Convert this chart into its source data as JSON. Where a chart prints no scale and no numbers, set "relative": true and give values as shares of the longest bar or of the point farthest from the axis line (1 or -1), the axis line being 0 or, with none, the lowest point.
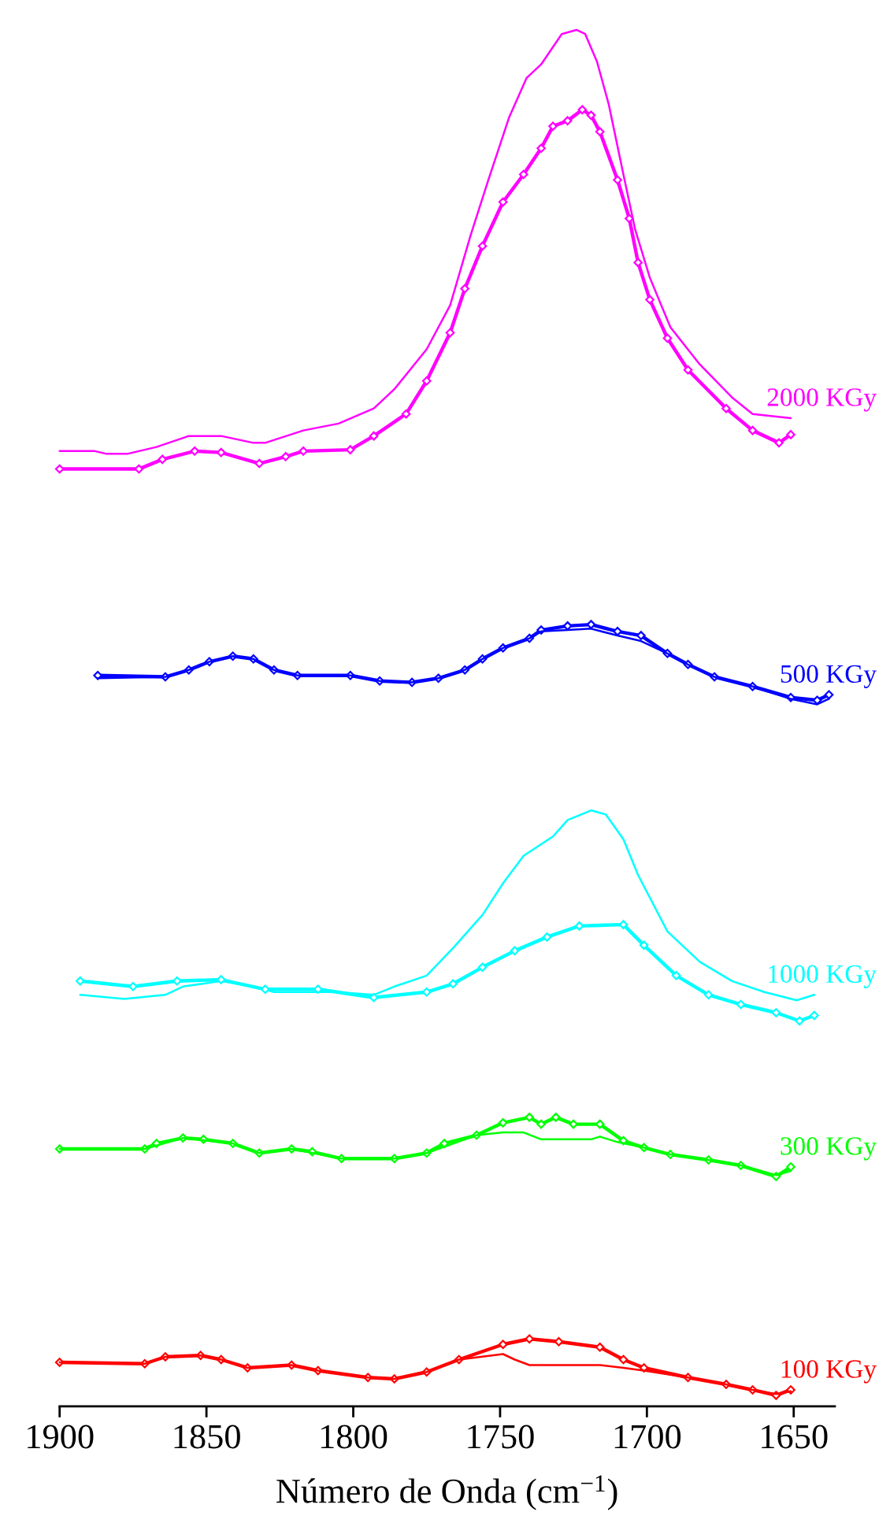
{
  "chart_data": {
    "type": "line",
    "relative": true,
    "xlabel": "Número de Onda (cm$^{−1}$)",
    "xlim": [
      1900,
      1636
    ],
    "xticks": [
      1900,
      1850,
      1800,
      1750,
      1700,
      1650
    ],
    "tick_labels": "x",
    "line_style": "solid",
    "series": [
      {
        "name": "2000 KGy",
        "color": "#ff00ff",
        "x": [
          1900,
          1888,
          1884,
          1877,
          1867,
          1856,
          1845,
          1834,
          1830,
          1817,
          1805,
          1793,
          1786,
          1775,
          1767,
          1760,
          1754,
          1747,
          1741,
          1736,
          1729,
          1724,
          1721,
          1717,
          1713,
          1708,
          1704,
          1699,
          1692,
          1682,
          1671,
          1664,
          1651
        ],
        "values": [
          0.694,
          0.694,
          0.692,
          0.692,
          0.697,
          0.705,
          0.705,
          0.7,
          0.7,
          0.709,
          0.714,
          0.725,
          0.739,
          0.768,
          0.8,
          0.851,
          0.891,
          0.936,
          0.965,
          0.975,
          0.997,
          1,
          0.997,
          0.977,
          0.946,
          0.895,
          0.855,
          0.82,
          0.784,
          0.757,
          0.733,
          0.721,
          0.718
        ]
      },
      {
        "color": "#ff00ff",
        "marker": "diamond",
        "x": [
          1900,
          1873,
          1865,
          1854,
          1845,
          1832,
          1823,
          1817,
          1801,
          1793,
          1782,
          1775,
          1767,
          1762,
          1756,
          1749,
          1742,
          1736,
          1732,
          1727,
          1722,
          1719,
          1716,
          1710,
          1706,
          1703,
          1699,
          1693,
          1686,
          1673,
          1664,
          1655,
          1651
        ],
        "values": [
          0.681,
          0.681,
          0.688,
          0.694,
          0.693,
          0.685,
          0.69,
          0.694,
          0.695,
          0.705,
          0.721,
          0.745,
          0.78,
          0.812,
          0.843,
          0.875,
          0.895,
          0.914,
          0.93,
          0.934,
          0.942,
          0.938,
          0.926,
          0.891,
          0.863,
          0.831,
          0.804,
          0.776,
          0.753,
          0.725,
          0.709,
          0.7,
          0.706
        ]
      },
      {
        "name": "500 KGy",
        "color": "#0000ff",
        "marker": "diamond",
        "x": [
          1887,
          1864,
          1856,
          1849,
          1841,
          1834,
          1827,
          1819,
          1801,
          1791,
          1780,
          1771,
          1762,
          1756,
          1749,
          1740,
          1736,
          1727,
          1719,
          1710,
          1702,
          1693,
          1686,
          1677,
          1664,
          1651,
          1642,
          1638
        ],
        "values": [
          0.531,
          0.53,
          0.535,
          0.541,
          0.545,
          0.543,
          0.535,
          0.531,
          0.531,
          0.527,
          0.526,
          0.529,
          0.535,
          0.543,
          0.551,
          0.558,
          0.564,
          0.567,
          0.568,
          0.563,
          0.56,
          0.547,
          0.539,
          0.53,
          0.523,
          0.515,
          0.513,
          0.517
        ]
      },
      {
        "color": "#0000ff",
        "x": [
          1887,
          1864,
          1856,
          1849,
          1841,
          1834,
          1827,
          1819,
          1801,
          1791,
          1780,
          1771,
          1762,
          1756,
          1749,
          1740,
          1736,
          1727,
          1719,
          1710,
          1702,
          1693,
          1686,
          1677,
          1664,
          1651,
          1642,
          1638
        ],
        "values": [
          0.529,
          0.53,
          0.535,
          0.541,
          0.545,
          0.543,
          0.535,
          0.531,
          0.531,
          0.527,
          0.526,
          0.529,
          0.535,
          0.543,
          0.551,
          0.558,
          0.563,
          0.564,
          0.565,
          0.56,
          0.556,
          0.547,
          0.539,
          0.53,
          0.523,
          0.514,
          0.51,
          0.514
        ]
      },
      {
        "name": "1000 KGy",
        "color": "#00ffff",
        "x": [
          1893,
          1878,
          1864,
          1858,
          1845,
          1834,
          1827,
          1806,
          1793,
          1786,
          1775,
          1766,
          1756,
          1749,
          1742,
          1732,
          1727,
          1719,
          1714,
          1708,
          1703,
          1693,
          1682,
          1671,
          1660,
          1649,
          1643
        ],
        "values": [
          0.299,
          0.296,
          0.299,
          0.305,
          0.309,
          0.305,
          0.301,
          0.301,
          0.299,
          0.305,
          0.313,
          0.333,
          0.357,
          0.38,
          0.4,
          0.414,
          0.426,
          0.433,
          0.43,
          0.412,
          0.386,
          0.345,
          0.323,
          0.309,
          0.301,
          0.295,
          0.299
        ]
      },
      {
        "color": "#00ffff",
        "marker": "diamond",
        "x": [
          1893,
          1875,
          1860,
          1845,
          1830,
          1812,
          1793,
          1775,
          1766,
          1756,
          1745,
          1734,
          1723,
          1708,
          1701,
          1690,
          1679,
          1668,
          1656,
          1648,
          1643
        ],
        "values": [
          0.309,
          0.305,
          0.309,
          0.31,
          0.303,
          0.303,
          0.297,
          0.301,
          0.307,
          0.319,
          0.331,
          0.341,
          0.349,
          0.35,
          0.335,
          0.313,
          0.299,
          0.292,
          0.286,
          0.28,
          0.284
        ]
      },
      {
        "name": "300 KGy",
        "color": "#00ff00",
        "marker": "diamond",
        "x": [
          1900,
          1871,
          1867,
          1858,
          1851,
          1841,
          1832,
          1821,
          1814,
          1804,
          1786,
          1775,
          1769,
          1758,
          1749,
          1740,
          1736,
          1731,
          1725,
          1716,
          1708,
          1701,
          1692,
          1679,
          1668,
          1656,
          1651
        ],
        "values": [
          0.187,
          0.187,
          0.191,
          0.195,
          0.194,
          0.191,
          0.184,
          0.187,
          0.185,
          0.18,
          0.18,
          0.184,
          0.191,
          0.197,
          0.206,
          0.21,
          0.205,
          0.21,
          0.205,
          0.205,
          0.193,
          0.188,
          0.183,
          0.179,
          0.175,
          0.167,
          0.174
        ]
      },
      {
        "color": "#00ff00",
        "x": [
          1900,
          1871,
          1858,
          1841,
          1832,
          1821,
          1804,
          1786,
          1775,
          1758,
          1749,
          1742,
          1736,
          1719,
          1716,
          1710,
          1701,
          1692,
          1679,
          1668,
          1656,
          1651
        ],
        "values": [
          0.187,
          0.187,
          0.195,
          0.191,
          0.184,
          0.187,
          0.18,
          0.18,
          0.184,
          0.197,
          0.199,
          0.199,
          0.194,
          0.194,
          0.196,
          0.192,
          0.188,
          0.183,
          0.179,
          0.175,
          0.168,
          0.171
        ]
      },
      {
        "name": "100 KGy",
        "color": "#ff0000",
        "marker": "diamond",
        "x": [
          1900,
          1871,
          1864,
          1852,
          1845,
          1836,
          1821,
          1812,
          1795,
          1786,
          1775,
          1764,
          1749,
          1740,
          1730,
          1716,
          1708,
          1701,
          1686,
          1673,
          1664,
          1656,
          1651
        ],
        "values": [
          0.032,
          0.031,
          0.036,
          0.037,
          0.034,
          0.028,
          0.03,
          0.026,
          0.021,
          0.02,
          0.025,
          0.034,
          0.045,
          0.049,
          0.047,
          0.043,
          0.034,
          0.028,
          0.021,
          0.016,
          0.012,
          0.008,
          0.012
        ]
      },
      {
        "color": "#ff0000",
        "x": [
          1900,
          1871,
          1864,
          1852,
          1845,
          1836,
          1821,
          1812,
          1795,
          1786,
          1775,
          1764,
          1749,
          1745,
          1740,
          1716,
          1708,
          1701,
          1686,
          1673,
          1664,
          1656,
          1651
        ],
        "values": [
          0.032,
          0.031,
          0.036,
          0.037,
          0.034,
          0.028,
          0.03,
          0.026,
          0.021,
          0.02,
          0.025,
          0.034,
          0.038,
          0.034,
          0.03,
          0.03,
          0.028,
          0.026,
          0.021,
          0.016,
          0.012,
          0.009,
          0.011
        ]
      }
    ]
  }
}
